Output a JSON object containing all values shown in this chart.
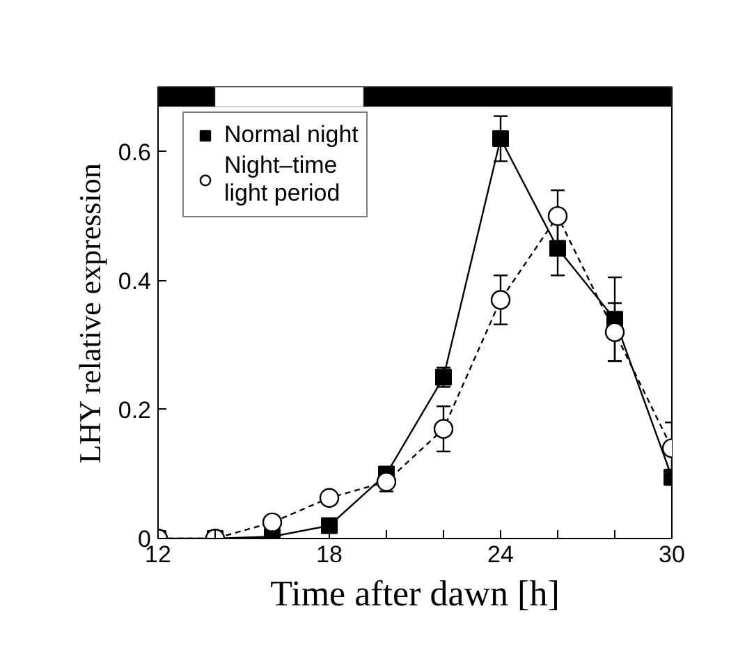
{
  "chart_data": {
    "type": "line",
    "xlabel": "Time after dawn [h]",
    "ylabel": "LHY relative expression",
    "x": [
      12,
      14,
      16,
      18,
      20,
      22,
      24,
      26,
      28,
      30
    ],
    "series": [
      {
        "name": "Normal night",
        "color": "#000000",
        "marker": "square",
        "line_style": "solid",
        "values": [
          0,
          0,
          0.003,
          0.02,
          0.1,
          0.25,
          0.62,
          0.45,
          0.34,
          0.095
        ],
        "errors": [
          null,
          null,
          null,
          null,
          0.01,
          0.015,
          0.035,
          0.042,
          0.065,
          0.012
        ]
      },
      {
        "name": "Night–time\nlight period",
        "color": "#000000",
        "marker": "circle",
        "line_style": "dashed",
        "values": [
          0,
          0,
          0.025,
          0.063,
          0.088,
          0.17,
          0.37,
          0.5,
          0.32,
          0.14
        ],
        "errors": [
          null,
          null,
          null,
          null,
          0.015,
          0.035,
          0.038,
          0.04,
          0.045,
          0.04
        ]
      }
    ],
    "xlim": [
      12,
      30
    ],
    "ylim": [
      0,
      0.7
    ],
    "xticks": [
      12,
      {
        "value": 14,
        "label": null
      },
      {
        "value": 16,
        "label": null
      },
      18,
      {
        "value": 20,
        "label": null
      },
      {
        "value": 22,
        "label": null
      },
      24,
      {
        "value": 26,
        "label": null
      },
      {
        "value": 28,
        "label": null
      },
      30
    ],
    "yticks": [
      0,
      0.2,
      0.4,
      0.6
    ],
    "bands": [
      {
        "axis": "x",
        "from": 12,
        "to": 14,
        "color": "#000000"
      },
      {
        "axis": "x",
        "from": 14,
        "to": 19.2,
        "color": "#ffffff"
      },
      {
        "axis": "x",
        "from": 19.2,
        "to": 30,
        "color": "#000000"
      }
    ],
    "legend": "top left",
    "grid": false
  }
}
